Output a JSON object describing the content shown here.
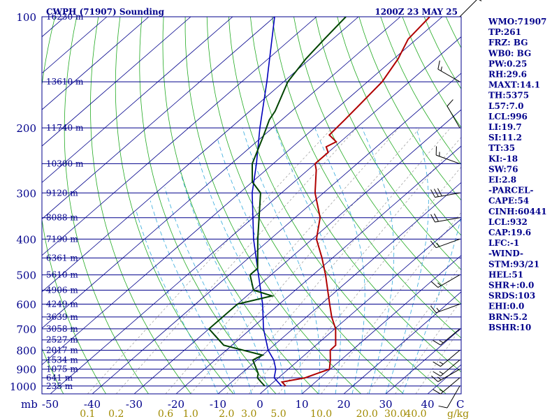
{
  "chart_data": {
    "type": "line",
    "title": "CWPH (71907) Sounding",
    "valid_time": "1200Z 23 MAY 25",
    "pressure_unit_label": "mb",
    "temperature_label": "C",
    "mixing_ratio_unit": "g/kg",
    "pressure_ticks": [
      100,
      200,
      300,
      400,
      500,
      600,
      700,
      800,
      900,
      1000
    ],
    "height_levels": [
      {
        "p": 100,
        "label": "16230 m"
      },
      {
        "p": 150,
        "label": "13610 m"
      },
      {
        "p": 200,
        "label": "11740 m"
      },
      {
        "p": 250,
        "label": "10300 m"
      },
      {
        "p": 300,
        "label": "9120 m"
      },
      {
        "p": 350,
        "label": "8088 m"
      },
      {
        "p": 400,
        "label": "7190 m"
      },
      {
        "p": 450,
        "label": "6361 m"
      },
      {
        "p": 500,
        "label": "5610 m"
      },
      {
        "p": 550,
        "label": "4906 m"
      },
      {
        "p": 600,
        "label": "4249 m"
      },
      {
        "p": 650,
        "label": "3639 m"
      },
      {
        "p": 700,
        "label": "3058 m"
      },
      {
        "p": 750,
        "label": "2527 m"
      },
      {
        "p": 800,
        "label": "2017 m"
      },
      {
        "p": 850,
        "label": "1534 m"
      },
      {
        "p": 900,
        "label": "1075 m"
      },
      {
        "p": 950,
        "label": "641 m"
      },
      {
        "p": 1000,
        "label": "235 m"
      }
    ],
    "temperature_ticks": [
      -50,
      -40,
      -30,
      -20,
      -10,
      0,
      10,
      20,
      30,
      40
    ],
    "mixing_ratio_ticks": [
      "0.1",
      "0.2",
      "0.6",
      "1.0",
      "2.0",
      "3.0",
      "5.0",
      "10.0",
      "20.0",
      "30.0",
      "40.0"
    ],
    "mixing_ratio_values": [
      0.1,
      0.2,
      0.6,
      1.0,
      2.0,
      3.0,
      5.0,
      10.0,
      20.0,
      30.0,
      40.0
    ],
    "temperature_profile": [
      {
        "p": 1000,
        "t": 4.0
      },
      {
        "p": 975,
        "t": 2.0
      },
      {
        "p": 950,
        "t": 6.4
      },
      {
        "p": 925,
        "t": 8.0
      },
      {
        "p": 900,
        "t": 9.8
      },
      {
        "p": 850,
        "t": 7.5
      },
      {
        "p": 800,
        "t": 4.8
      },
      {
        "p": 775,
        "t": 4.7
      },
      {
        "p": 700,
        "t": 0.2
      },
      {
        "p": 650,
        "t": -4.0
      },
      {
        "p": 600,
        "t": -8.0
      },
      {
        "p": 500,
        "t": -17.0
      },
      {
        "p": 450,
        "t": -22.5
      },
      {
        "p": 400,
        "t": -29.0
      },
      {
        "p": 350,
        "t": -34.0
      },
      {
        "p": 300,
        "t": -42.0
      },
      {
        "p": 260,
        "t": -48.0
      },
      {
        "p": 250,
        "t": -50.0
      },
      {
        "p": 233,
        "t": -50.0
      },
      {
        "p": 225,
        "t": -52.0
      },
      {
        "p": 218,
        "t": -51.0
      },
      {
        "p": 209,
        "t": -54.5
      },
      {
        "p": 190,
        "t": -55.0
      },
      {
        "p": 175,
        "t": -55.5
      },
      {
        "p": 150,
        "t": -56.5
      },
      {
        "p": 130,
        "t": -59.0
      },
      {
        "p": 115,
        "t": -62.0
      },
      {
        "p": 100,
        "t": -63.0
      }
    ],
    "dewpoint_profile": [
      {
        "p": 1000,
        "t": -1.0
      },
      {
        "p": 975,
        "t": -3.0
      },
      {
        "p": 950,
        "t": -5.0
      },
      {
        "p": 925,
        "t": -6.0
      },
      {
        "p": 850,
        "t": -11.0
      },
      {
        "p": 825,
        "t": -10.0
      },
      {
        "p": 775,
        "t": -22.0
      },
      {
        "p": 700,
        "t": -30.0
      },
      {
        "p": 600,
        "t": -30.0
      },
      {
        "p": 570,
        "t": -24.0
      },
      {
        "p": 550,
        "t": -30.0
      },
      {
        "p": 500,
        "t": -35.0
      },
      {
        "p": 480,
        "t": -35.0
      },
      {
        "p": 400,
        "t": -43.0
      },
      {
        "p": 300,
        "t": -55.0
      },
      {
        "p": 280,
        "t": -60.0
      },
      {
        "p": 250,
        "t": -65.0
      },
      {
        "p": 210,
        "t": -70.0
      },
      {
        "p": 190,
        "t": -73.0
      },
      {
        "p": 180,
        "t": -74.0
      },
      {
        "p": 150,
        "t": -79.0
      },
      {
        "p": 130,
        "t": -81.0
      },
      {
        "p": 115,
        "t": -82.0
      },
      {
        "p": 100,
        "t": -83.0
      }
    ],
    "parcel_path": [
      {
        "p": 1000,
        "t": 3.0
      },
      {
        "p": 950,
        "t": -1.0
      },
      {
        "p": 900,
        "t": -3.0
      },
      {
        "p": 850,
        "t": -6.0
      },
      {
        "p": 800,
        "t": -10.0
      },
      {
        "p": 700,
        "t": -17.0
      },
      {
        "p": 600,
        "t": -24.0
      },
      {
        "p": 500,
        "t": -33.0
      },
      {
        "p": 400,
        "t": -44.0
      },
      {
        "p": 300,
        "t": -57.0
      },
      {
        "p": 250,
        "t": -64.0
      },
      {
        "p": 200,
        "t": -73.0
      },
      {
        "p": 150,
        "t": -84.0
      },
      {
        "p": 100,
        "t": -100.0
      }
    ],
    "wind_profile": [
      {
        "p": 100,
        "dir": 45,
        "spd": 5
      },
      {
        "p": 150,
        "dir": 300,
        "spd": 15
      },
      {
        "p": 200,
        "dir": 330,
        "spd": 10
      },
      {
        "p": 250,
        "dir": 290,
        "spd": 15
      },
      {
        "p": 300,
        "dir": 260,
        "spd": 30
      },
      {
        "p": 350,
        "dir": 260,
        "spd": 20
      },
      {
        "p": 400,
        "dir": 250,
        "spd": 15
      },
      {
        "p": 500,
        "dir": 240,
        "spd": 15
      },
      {
        "p": 600,
        "dir": 250,
        "spd": 15
      },
      {
        "p": 700,
        "dir": 230,
        "spd": 15
      },
      {
        "p": 800,
        "dir": 230,
        "spd": 15
      },
      {
        "p": 850,
        "dir": 230,
        "spd": 15
      },
      {
        "p": 900,
        "dir": 240,
        "spd": 15
      },
      {
        "p": 950,
        "dir": 230,
        "spd": 15
      },
      {
        "p": 1000,
        "dir": 210,
        "spd": 10
      }
    ],
    "indices": [
      "WMO:71907",
      "TP:261",
      "FRZ: BG",
      "WB0: BG",
      "PW:0.25",
      "RH:29.6",
      "MAXT:14.1",
      "TH:5375",
      "L57:7.0",
      "LCL:996",
      "LI:19.7",
      "SI:11.2",
      "TT:35",
      "KI:-18",
      "SW:76",
      "EI:2.8",
      "-PARCEL-",
      "CAPE:54",
      "CINH:60441",
      "LCL:932",
      "CAP:19.6",
      "LFC:-1",
      "-WIND-",
      "STM:93/21",
      "HEL:51",
      "SHR+:0.0",
      "SRDS:103",
      "EHI:0.0",
      "BRN:5.2",
      "BSHR:10"
    ],
    "grid": true
  },
  "colors": {
    "temperature": "#b00000",
    "dewpoint": "#004400",
    "parcel": "#0000bb",
    "isobar": "#00008b",
    "isotherm": "#00008b",
    "dry_adiabat": "#22aa22",
    "moist_adiabat": "#33aadd",
    "mixing_ratio": "#999999",
    "labels": "#00008b",
    "mixing_labels": "#a08a00",
    "wind_barb": "#000000"
  }
}
